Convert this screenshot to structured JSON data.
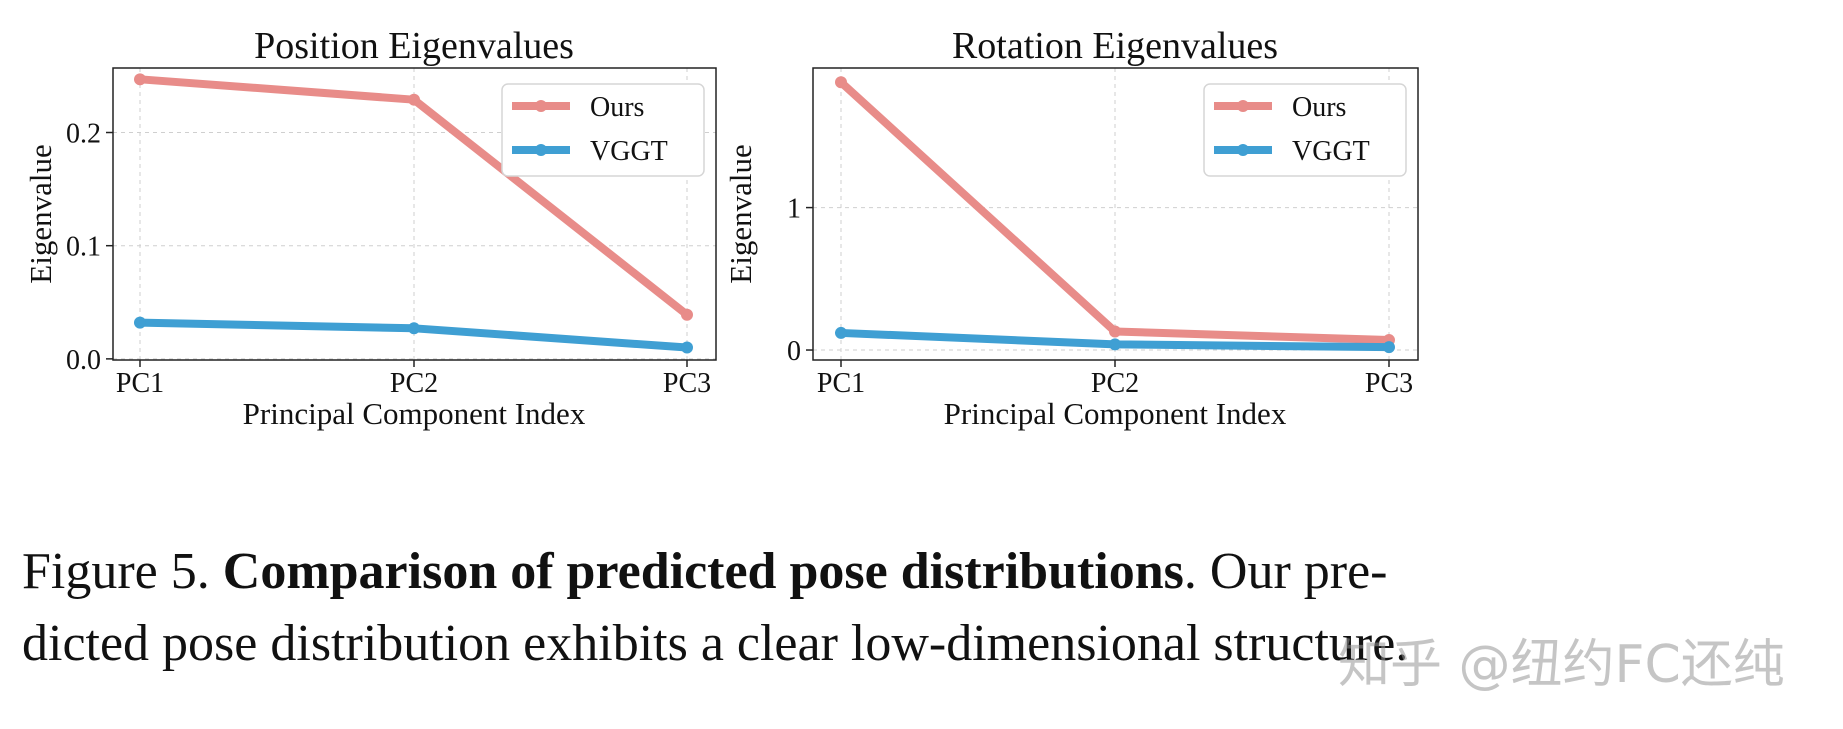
{
  "chart_data": [
    {
      "type": "line",
      "title": "Position Eigenvalues",
      "xlabel": "Principal Component Index",
      "ylabel": "Eigenvalue",
      "categories": [
        "PC1",
        "PC2",
        "PC3"
      ],
      "yticks": [
        0.0,
        0.1,
        0.2
      ],
      "ytick_labels": [
        "0.0",
        "0.1",
        "0.2"
      ],
      "ylim": [
        -0.001,
        0.257
      ],
      "grid": true,
      "legend_position": "top-right",
      "series": [
        {
          "name": "Ours",
          "color": "#e88c89",
          "values": [
            0.247,
            0.229,
            0.039
          ]
        },
        {
          "name": "VGGT",
          "color": "#3f9fd3",
          "values": [
            0.032,
            0.027,
            0.01
          ]
        }
      ]
    },
    {
      "type": "line",
      "title": "Rotation Eigenvalues",
      "xlabel": "Principal Component Index",
      "ylabel": "Eigenvalue",
      "categories": [
        "PC1",
        "PC2",
        "PC3"
      ],
      "yticks": [
        0,
        1
      ],
      "ytick_labels": [
        "0",
        "1"
      ],
      "ylim": [
        -0.07,
        1.98
      ],
      "grid": true,
      "legend_position": "top-right",
      "series": [
        {
          "name": "Ours",
          "color": "#e88c89",
          "values": [
            1.88,
            0.13,
            0.07
          ]
        },
        {
          "name": "VGGT",
          "color": "#3f9fd3",
          "values": [
            0.12,
            0.04,
            0.02
          ]
        }
      ]
    }
  ],
  "caption": {
    "label": "Figure 5.",
    "bold": "Comparison of predicted pose distributions",
    "line1_rest": ". Our pre-",
    "line2": "dicted pose distribution exhibits a clear low-dimensional structure."
  },
  "watermark": "知乎 @纽约FC还纯"
}
